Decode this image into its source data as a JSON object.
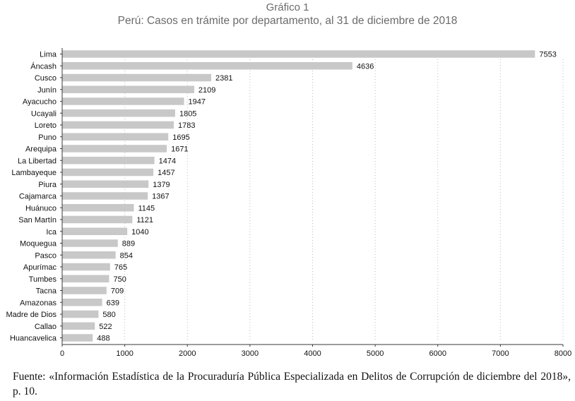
{
  "header": {
    "kicker": "Gráfico 1",
    "title": "Perú: Casos en trámite por departamento, al 31 de diciembre de 2018"
  },
  "source": "Fuente: «Información Estadística de la Procuraduría Pública Especializada en Delitos de Corrupción de diciembre del 2018», p. 10.",
  "colors": {
    "bar": "#c8c8c8",
    "grid": "#bdbdbd",
    "axis": "#3a3a3a",
    "title": "#6b6b6b"
  },
  "chart_data": {
    "type": "bar",
    "orientation": "horizontal",
    "title": "Perú: Casos en trámite por departamento, al 31 de diciembre de 2018",
    "xlabel": "",
    "ylabel": "",
    "xlim": [
      0,
      8000
    ],
    "xticks": [
      0,
      1000,
      2000,
      3000,
      4000,
      5000,
      6000,
      7000,
      8000
    ],
    "grid": "vertical-dotted",
    "legend": "none",
    "categories": [
      "Lima",
      "Áncash",
      "Cusco",
      "Junín",
      "Ayacucho",
      "Ucayali",
      "Loreto",
      "Puno",
      "Arequipa",
      "La Libertad",
      "Lambayeque",
      "Piura",
      "Cajamarca",
      "Huánuco",
      "San Martín",
      "Ica",
      "Moquegua",
      "Pasco",
      "Apurímac",
      "Tumbes",
      "Tacna",
      "Amazonas",
      "Madre de Dios",
      "Callao",
      "Huancavelica"
    ],
    "values": [
      7553,
      4636,
      2381,
      2109,
      1947,
      1805,
      1783,
      1695,
      1671,
      1474,
      1457,
      1379,
      1367,
      1145,
      1121,
      1040,
      889,
      854,
      765,
      750,
      709,
      639,
      580,
      522,
      488
    ]
  }
}
